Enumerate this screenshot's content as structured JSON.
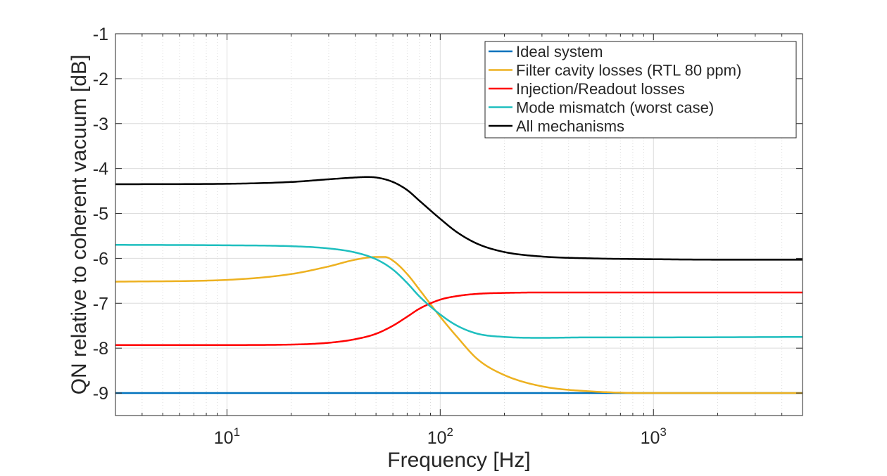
{
  "chart_data": {
    "type": "line",
    "title": "",
    "xlabel": "Frequency [Hz]",
    "ylabel": "QN relative to coherent vacuum [dB]",
    "xscale": "log",
    "xlim": [
      3,
      5000
    ],
    "ylim": [
      -9.5,
      -1
    ],
    "grid": true,
    "legend_position": "top-right",
    "x_ticks": [
      {
        "value": 10,
        "base": "10",
        "exp": "1"
      },
      {
        "value": 100,
        "base": "10",
        "exp": "2"
      },
      {
        "value": 1000,
        "base": "10",
        "exp": "3"
      }
    ],
    "y_ticks": [
      {
        "value": -1,
        "label": "-1"
      },
      {
        "value": -2,
        "label": "-2"
      },
      {
        "value": -3,
        "label": "-3"
      },
      {
        "value": -4,
        "label": "-4"
      },
      {
        "value": -5,
        "label": "-5"
      },
      {
        "value": -6,
        "label": "-6"
      },
      {
        "value": -7,
        "label": "-7"
      },
      {
        "value": -8,
        "label": "-8"
      },
      {
        "value": -9,
        "label": "-9"
      }
    ],
    "series": [
      {
        "name": "Ideal system",
        "color": "#0072BD",
        "x": [
          3,
          10,
          100,
          1000,
          5000
        ],
        "y": [
          -9.0,
          -9.0,
          -9.0,
          -9.0,
          -9.0
        ]
      },
      {
        "name": "Filter cavity losses (RTL 80 ppm)",
        "color": "#EDB120",
        "x": [
          3,
          10,
          20,
          30,
          40,
          50,
          55,
          60,
          70,
          80,
          100,
          120,
          150,
          200,
          300,
          500,
          1000,
          2000,
          5000
        ],
        "y": [
          -6.52,
          -6.48,
          -6.35,
          -6.18,
          -6.03,
          -5.97,
          -5.97,
          -6.05,
          -6.35,
          -6.7,
          -7.3,
          -7.75,
          -8.25,
          -8.6,
          -8.85,
          -8.96,
          -9.0,
          -9.0,
          -9.0
        ]
      },
      {
        "name": "Injection/Readout losses",
        "color": "#FF0000",
        "x": [
          3,
          10,
          20,
          30,
          40,
          50,
          60,
          70,
          80,
          100,
          120,
          150,
          200,
          300,
          500,
          1000,
          5000
        ],
        "y": [
          -7.93,
          -7.93,
          -7.92,
          -7.88,
          -7.8,
          -7.68,
          -7.5,
          -7.3,
          -7.12,
          -6.92,
          -6.84,
          -6.79,
          -6.77,
          -6.76,
          -6.76,
          -6.76,
          -6.76
        ]
      },
      {
        "name": "Mode mismatch (worst case)",
        "color": "#1FBFBF",
        "x": [
          3,
          10,
          20,
          30,
          40,
          50,
          60,
          70,
          80,
          100,
          120,
          150,
          200,
          300,
          500,
          1000,
          5000
        ],
        "y": [
          -5.7,
          -5.71,
          -5.73,
          -5.78,
          -5.87,
          -6.02,
          -6.25,
          -6.55,
          -6.85,
          -7.25,
          -7.5,
          -7.68,
          -7.75,
          -7.77,
          -7.76,
          -7.76,
          -7.75
        ]
      },
      {
        "name": "All mechanisms",
        "color": "#000000",
        "x": [
          3,
          10,
          20,
          30,
          40,
          45,
          50,
          60,
          70,
          80,
          100,
          120,
          150,
          200,
          300,
          500,
          1000,
          2000,
          5000
        ],
        "y": [
          -4.35,
          -4.34,
          -4.3,
          -4.24,
          -4.2,
          -4.19,
          -4.2,
          -4.3,
          -4.48,
          -4.72,
          -5.12,
          -5.42,
          -5.68,
          -5.86,
          -5.96,
          -6.0,
          -6.02,
          -6.03,
          -6.03
        ]
      }
    ]
  }
}
